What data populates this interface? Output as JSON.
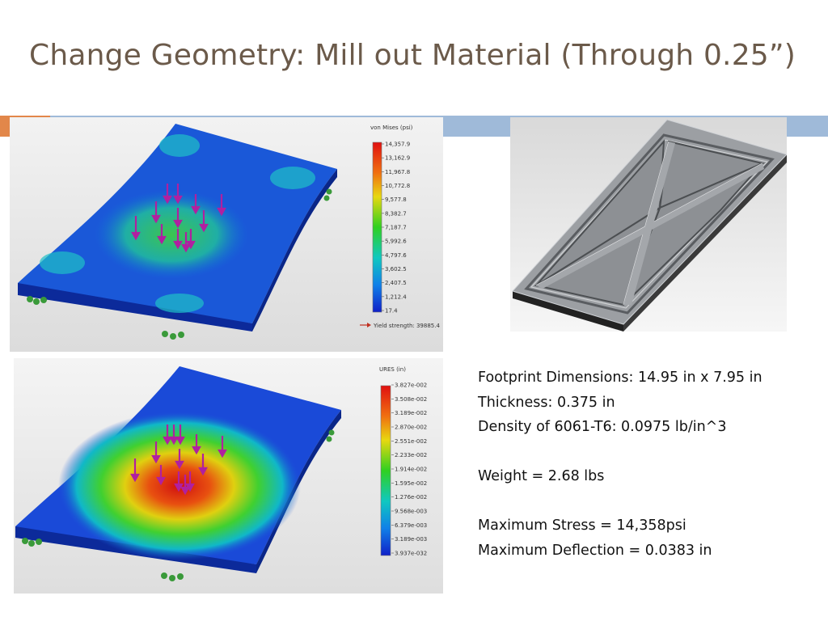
{
  "slide": {
    "title": "Change Geometry: Mill out Material (Through 0.25”)"
  },
  "stress_plot": {
    "legend_title": "von Mises (psi)",
    "ticks": [
      "14,357.9",
      "13,162.9",
      "11,967.8",
      "10,772.8",
      "9,577.8",
      "8,382.7",
      "7,187.7",
      "5,992.6",
      "4,797.6",
      "3,602.5",
      "2,407.5",
      "1,212.4",
      "17.4"
    ],
    "yield_label": "Yield strength: 39885.4"
  },
  "displacement_plot": {
    "legend_title": "URES (in)",
    "ticks": [
      "3.827e-002",
      "3.508e-002",
      "3.189e-002",
      "2.870e-002",
      "2.551e-002",
      "2.233e-002",
      "1.914e-002",
      "1.595e-002",
      "1.276e-002",
      "9.568e-003",
      "6.379e-003",
      "3.189e-003",
      "3.937e-032"
    ]
  },
  "specs": {
    "footprint": "Footprint Dimensions: 14.95 in x 7.95 in",
    "thickness": "Thickness: 0.375 in",
    "density": "Density of 6061-T6: 0.0975 lb/in^3",
    "weight": "Weight = 2.68 lbs",
    "max_stress": "Maximum Stress = 14,358psi",
    "max_deflection": "Maximum Deflection = 0.0383 in"
  },
  "colors": {
    "title": "#6b5a4a",
    "rule_orange": "#e2874a",
    "rule_blue": "#9fbad9",
    "fea_low": "#1030c8",
    "fea_high": "#e82010",
    "load_arrow": "#b020a0",
    "fixture": "#3a9a3a",
    "cad_plate": "#9c9fa3"
  },
  "icons": [
    "load-arrow-icon",
    "fixture-icon",
    "yield-arrow-icon"
  ]
}
